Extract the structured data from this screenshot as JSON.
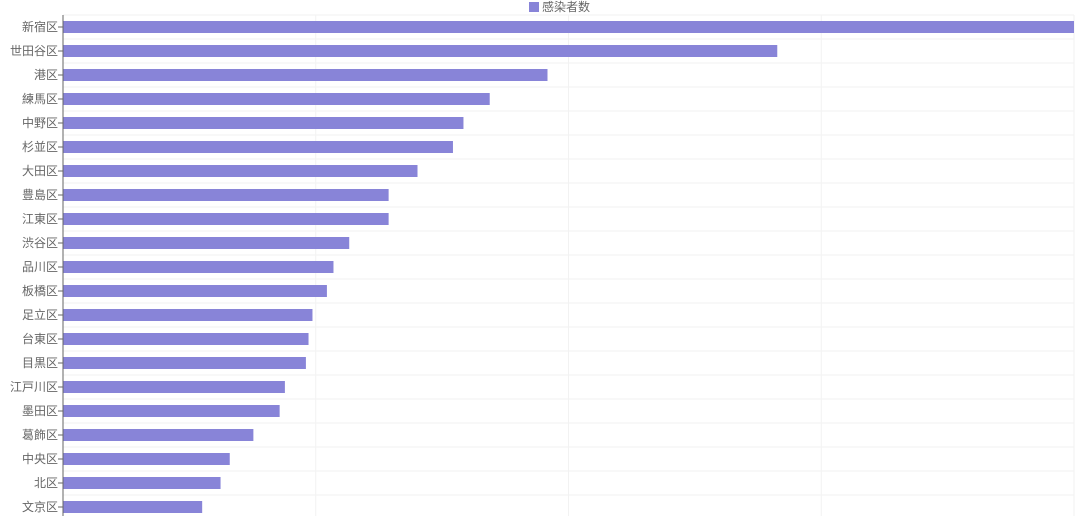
{
  "chart_data": {
    "type": "bar",
    "orientation": "horizontal",
    "title": "",
    "xlabel": "",
    "ylabel": "",
    "legend": {
      "position": "top-center",
      "show": true
    },
    "grid": true,
    "xlim": [
      0,
      1540
    ],
    "categories": [
      "新宿区",
      "世田谷区",
      "港区",
      "練馬区",
      "中野区",
      "杉並区",
      "大田区",
      "豊島区",
      "江東区",
      "渋谷区",
      "品川区",
      "板橋区",
      "足立区",
      "台東区",
      "目黒区",
      "江戸川区",
      "墨田区",
      "葛飾区",
      "中央区",
      "北区",
      "文京区"
    ],
    "series": [
      {
        "name": "感染者数",
        "color": "#8884d8",
        "values": [
          1540,
          1088,
          738,
          650,
          610,
          594,
          540,
          496,
          496,
          436,
          412,
          402,
          380,
          374,
          370,
          338,
          330,
          290,
          254,
          240,
          212
        ]
      }
    ]
  }
}
